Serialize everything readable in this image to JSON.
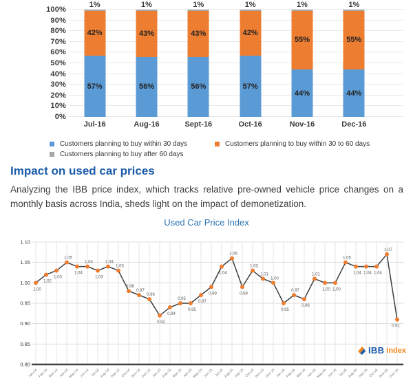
{
  "page": {
    "heading": "Impact on used car prices",
    "paragraph": "Analyzing the IBB price index, which tracks relative pre-owned vehicle price changes on a monthly basis across India, sheds light on the impact of demonetization.",
    "logo": {
      "name": "IBB",
      "suffix": "Index"
    }
  },
  "chart_data": [
    {
      "type": "bar",
      "subtype": "stacked-100",
      "categories": [
        "Jul-16",
        "Aug-16",
        "Sept-16",
        "Oct-16",
        "Nov-16",
        "Dec-16"
      ],
      "series": [
        {
          "name": "Customers planning to buy within 30 days",
          "color": "#5B9BD5",
          "values": [
            57,
            56,
            56,
            57,
            44,
            44
          ]
        },
        {
          "name": "Customers planning to buy within 30 to 60 days",
          "color": "#ED7D31",
          "values": [
            42,
            43,
            43,
            42,
            55,
            55
          ]
        },
        {
          "name": "Customers planning to buy after 60 days",
          "color": "#A6A6A6",
          "values": [
            1,
            1,
            1,
            1,
            1,
            1
          ]
        }
      ],
      "yticks": [
        "0%",
        "10%",
        "20%",
        "30%",
        "40%",
        "50%",
        "60%",
        "70%",
        "80%",
        "90%",
        "100%"
      ],
      "ylim": [
        0,
        100
      ],
      "value_suffix": "%",
      "grid": true,
      "legend_position": "bottom"
    },
    {
      "type": "line",
      "title": "Used Car Price Index",
      "x": [
        "Jan-14",
        "Feb-14",
        "Mar-14",
        "Apr-14",
        "May-14",
        "Jun-14",
        "Jul-14",
        "Aug-14",
        "Sep-14",
        "Oct-14",
        "Nov-14",
        "Dec-14",
        "Jan-15",
        "Feb-15",
        "Mar-15",
        "Apr-15",
        "May-15",
        "Jun-15",
        "Jul-15",
        "Aug-15",
        "Sep-15",
        "Oct-15",
        "Nov-15",
        "Dec-15",
        "Jan-16",
        "Feb-16",
        "Mar-16",
        "Apr-16",
        "May-16",
        "Jun-16",
        "Jul-16",
        "Aug-16",
        "Sep-16",
        "Oct-16",
        "Nov-16",
        "Dec-16"
      ],
      "values": [
        1.0,
        1.02,
        1.03,
        1.05,
        1.04,
        1.04,
        1.03,
        1.04,
        1.03,
        0.98,
        0.97,
        0.96,
        0.92,
        0.94,
        0.95,
        0.95,
        0.97,
        0.99,
        1.04,
        1.06,
        0.99,
        1.03,
        1.01,
        1.0,
        0.95,
        0.97,
        0.96,
        1.01,
        1.0,
        1.0,
        1.05,
        1.04,
        1.04,
        1.04,
        1.07,
        0.91
      ],
      "label_side": [
        "b",
        "b",
        "b",
        "a",
        "b",
        "a",
        "b",
        "a",
        "a",
        "a",
        "a",
        "a",
        "b",
        "b",
        "a",
        "b",
        "b",
        "b",
        "b",
        "a",
        "b",
        "a",
        "a",
        "a",
        "b",
        "a",
        "b",
        "a",
        "b",
        "b",
        "a",
        "b",
        "b",
        "b",
        "a",
        "b"
      ],
      "ylim": [
        0.8,
        1.1
      ],
      "ytick_step": 0.05,
      "yticks": [
        "0.80",
        "0.85",
        "0.90",
        "0.95",
        "1.00",
        "1.05",
        "1.10"
      ],
      "line_color": "#3D3D3D",
      "marker_color": "#ED7D31",
      "grid": true,
      "legend_position": "none"
    }
  ]
}
